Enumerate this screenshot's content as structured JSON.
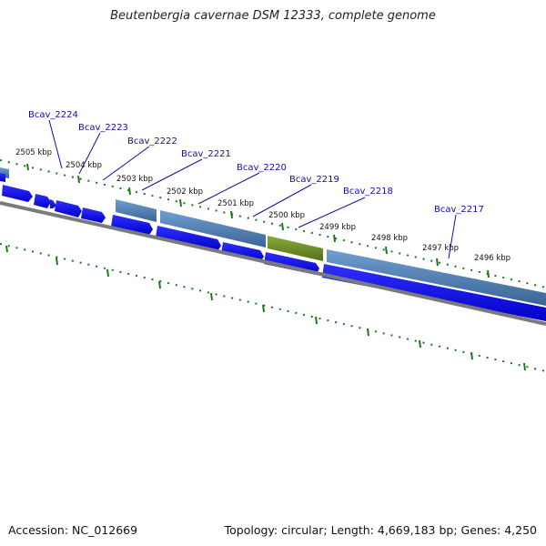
{
  "title": "Beutenbergia cavernae DSM 12333, complete genome",
  "accession": "Accession: NC_012669",
  "summary": "Topology: circular; Length: 4,669,183 bp; Genes: 4,250",
  "ticks": [
    {
      "label": "2505 kbp"
    },
    {
      "label": "2504 kbp"
    },
    {
      "label": "2503 kbp"
    },
    {
      "label": "2502 kbp"
    },
    {
      "label": "2501 kbp"
    },
    {
      "label": "2500 kbp"
    },
    {
      "label": "2499 kbp"
    },
    {
      "label": "2498 kbp"
    },
    {
      "label": "2497 kbp"
    },
    {
      "label": "2496 kbp"
    }
  ],
  "genes": [
    {
      "label": "Bcav_2224"
    },
    {
      "label": "Bcav_2223"
    },
    {
      "label": "Bcav_2222"
    },
    {
      "label": "Bcav_2221"
    },
    {
      "label": "Bcav_2220"
    },
    {
      "label": "Bcav_2219"
    },
    {
      "label": "Bcav_2218"
    },
    {
      "label": "Bcav_2217"
    }
  ],
  "colors": {
    "cds": "#1010e0",
    "cds_light": "#4a6fa8",
    "highlight": "#6b8e23",
    "backbone": "#888888",
    "ticks": "#1a7a1a",
    "label": "#1010a0"
  }
}
